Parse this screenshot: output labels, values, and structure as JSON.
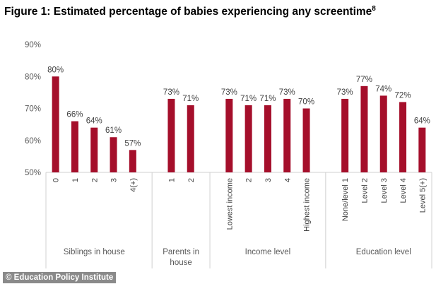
{
  "chart_data": {
    "type": "bar",
    "title": "Figure 1: Estimated percentage of babies experiencing any screentime",
    "title_superscript": "8",
    "ylim": [
      50,
      90
    ],
    "yticks": [
      "50%",
      "60%",
      "70%",
      "80%",
      "90%"
    ],
    "ytick_values": [
      50,
      60,
      70,
      80,
      90
    ],
    "grid": false,
    "bar_color": "#a50f2b",
    "groups": [
      {
        "name": "Siblings in house",
        "categories": [
          "0",
          "1",
          "2",
          "3",
          "4(+)"
        ],
        "values": [
          80,
          66,
          64,
          61,
          57
        ],
        "labels": [
          "80%",
          "66%",
          "64%",
          "61%",
          "57%"
        ]
      },
      {
        "name": "Parents in house",
        "categories": [
          "1",
          "2"
        ],
        "values": [
          73,
          71
        ],
        "labels": [
          "73%",
          "71%"
        ]
      },
      {
        "name": "Income level",
        "categories": [
          "Lowest income",
          "2",
          "3",
          "4",
          "Highest income"
        ],
        "values": [
          73,
          71,
          71,
          73,
          70
        ],
        "labels": [
          "73%",
          "71%",
          "71%",
          "73%",
          "70%"
        ]
      },
      {
        "name": "Education level",
        "categories": [
          "None/level 1",
          "Level 2",
          "Level 3",
          "Level 4",
          "Level 5(+)"
        ],
        "values": [
          73,
          77,
          74,
          72,
          64
        ],
        "labels": [
          "73%",
          "77%",
          "74%",
          "72%",
          "64%"
        ]
      }
    ]
  },
  "credit": "© Education Policy Institute"
}
